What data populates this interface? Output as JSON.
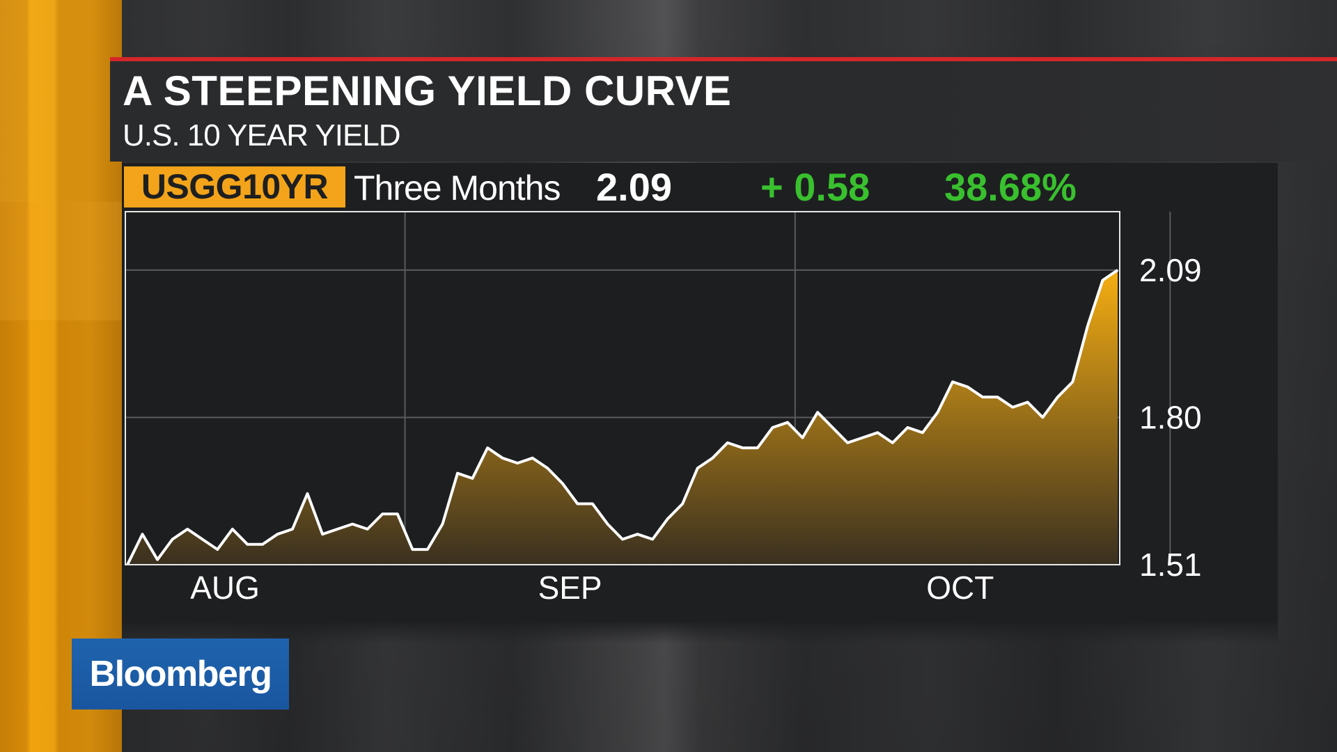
{
  "header": {
    "title": "A STEEPENING YIELD CURVE",
    "subtitle": "U.S. 10 YEAR YIELD"
  },
  "quote": {
    "ticker": "USGG10YR",
    "period": "Three Months",
    "last": "2.09",
    "change": "+ 0.58",
    "pct_change": "38.68%"
  },
  "branding": {
    "logo_text": "Bloomberg"
  },
  "colors": {
    "accent_red": "#d4262a",
    "ticker_orange": "#f3a41a",
    "positive_green": "#39c02e",
    "area_top": "#f5ad12",
    "area_bottom": "#3a3020",
    "line": "#ffffff"
  },
  "chart_data": {
    "type": "area",
    "title": "A STEEPENING YIELD CURVE",
    "subtitle": "U.S. 10 YEAR YIELD",
    "xlabel": "",
    "ylabel": "",
    "y_ticks": [
      2.09,
      1.8,
      1.51
    ],
    "y_tick_labels": [
      "2.09",
      "1.80",
      "1.51"
    ],
    "ylim": [
      1.51,
      2.205
    ],
    "x_ticks": [
      "AUG",
      "SEP",
      "OCT"
    ],
    "x_tick_positions": [
      6.5,
      29.5,
      55.5
    ],
    "month_dividers": [
      18.5,
      44.5,
      69.5
    ],
    "grid": true,
    "legend": "none",
    "series": [
      {
        "values": [
          1.51,
          1.57,
          1.52,
          1.56,
          1.58,
          1.56,
          1.54,
          1.58,
          1.55,
          1.55,
          1.57,
          1.58,
          1.65,
          1.57,
          1.58,
          1.59,
          1.58,
          1.61,
          1.61,
          1.54,
          1.54,
          1.59,
          1.69,
          1.68,
          1.74,
          1.72,
          1.71,
          1.72,
          1.7,
          1.67,
          1.63,
          1.63,
          1.59,
          1.56,
          1.57,
          1.56,
          1.6,
          1.63,
          1.7,
          1.72,
          1.75,
          1.74,
          1.74,
          1.78,
          1.79,
          1.76,
          1.81,
          1.78,
          1.75,
          1.76,
          1.77,
          1.75,
          1.78,
          1.77,
          1.81,
          1.87,
          1.86,
          1.84,
          1.84,
          1.82,
          1.83,
          1.8,
          1.84,
          1.87,
          1.98,
          2.07,
          2.09
        ]
      }
    ]
  }
}
